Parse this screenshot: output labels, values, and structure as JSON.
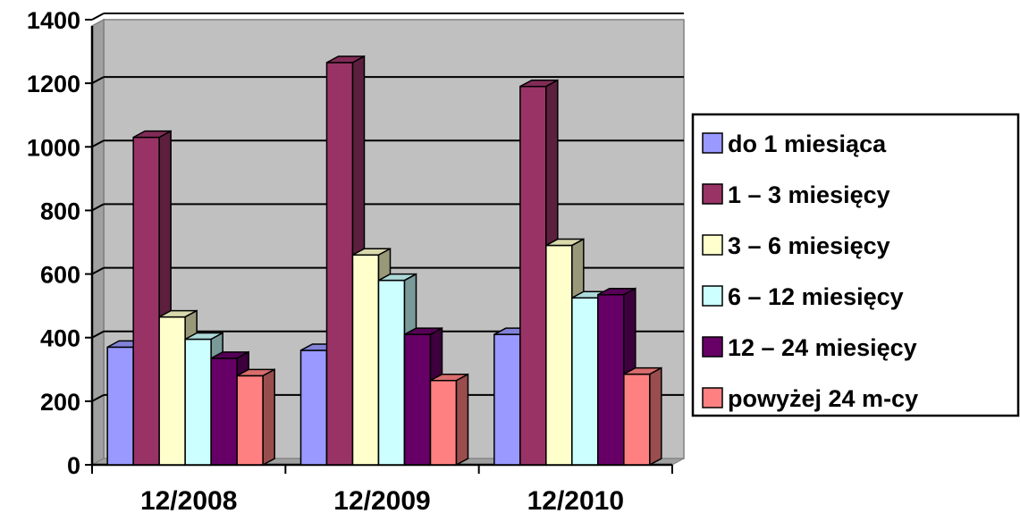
{
  "chart_data": {
    "type": "bar",
    "style": "3d-clustered-column",
    "categories": [
      "12/2008",
      "12/2009",
      "12/2010"
    ],
    "series": [
      {
        "name": "do 1 miesiąca",
        "values": [
          370,
          360,
          410
        ],
        "color": "#9999ff"
      },
      {
        "name": "1 – 3 miesięcy",
        "values": [
          1030,
          1265,
          1190
        ],
        "color": "#993366"
      },
      {
        "name": "3 – 6 miesięcy",
        "values": [
          465,
          660,
          690
        ],
        "color": "#ffffcc"
      },
      {
        "name": "6 – 12 miesięcy",
        "values": [
          395,
          580,
          525
        ],
        "color": "#ccffff"
      },
      {
        "name": "12 – 24 miesięcy",
        "values": [
          335,
          410,
          535
        ],
        "color": "#660066"
      },
      {
        "name": "powyżej 24 m-cy",
        "values": [
          280,
          265,
          285
        ],
        "color": "#ff8080"
      }
    ],
    "y_ticks": [
      "0",
      "200",
      "400",
      "600",
      "800",
      "1000",
      "1200",
      "1400"
    ],
    "ylim": [
      0,
      1400
    ],
    "grid": true,
    "wall_color": "#c0c0c0",
    "legend_position": "right"
  }
}
